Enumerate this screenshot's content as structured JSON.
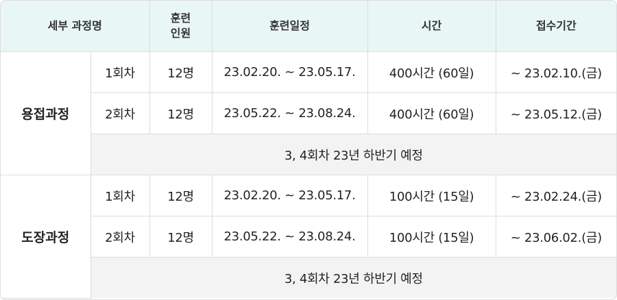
{
  "headers": {
    "course": "세부 과정명",
    "trainees_line1": "훈련",
    "trainees_line2": "인원",
    "schedule": "훈련일정",
    "hours": "시간",
    "reception": "접수기간"
  },
  "groups": [
    {
      "name": "용접과정",
      "rows": [
        {
          "round": "1회차",
          "trainees": "12명",
          "schedule": "23.02.20. ~ 23.05.17.",
          "hours": "400시간 (60일)",
          "reception": "~ 23.02.10.(금)"
        },
        {
          "round": "2회차",
          "trainees": "12명",
          "schedule": "23.05.22. ~ 23.08.24.",
          "hours": "400시간 (60일)",
          "reception": "~ 23.05.12.(금)"
        }
      ],
      "note": "3, 4회차 23년 하반기 예정"
    },
    {
      "name": "도장과정",
      "rows": [
        {
          "round": "1회차",
          "trainees": "12명",
          "schedule": "23.02.20. ~ 23.05.17.",
          "hours": "100시간 (15일)",
          "reception": "~ 23.02.24.(금)"
        },
        {
          "round": "2회차",
          "trainees": "12명",
          "schedule": "23.05.22. ~ 23.08.24.",
          "hours": "100시간 (15일)",
          "reception": "~ 23.06.02.(금)"
        }
      ],
      "note": "3, 4회차 23년 하반기 예정"
    }
  ]
}
